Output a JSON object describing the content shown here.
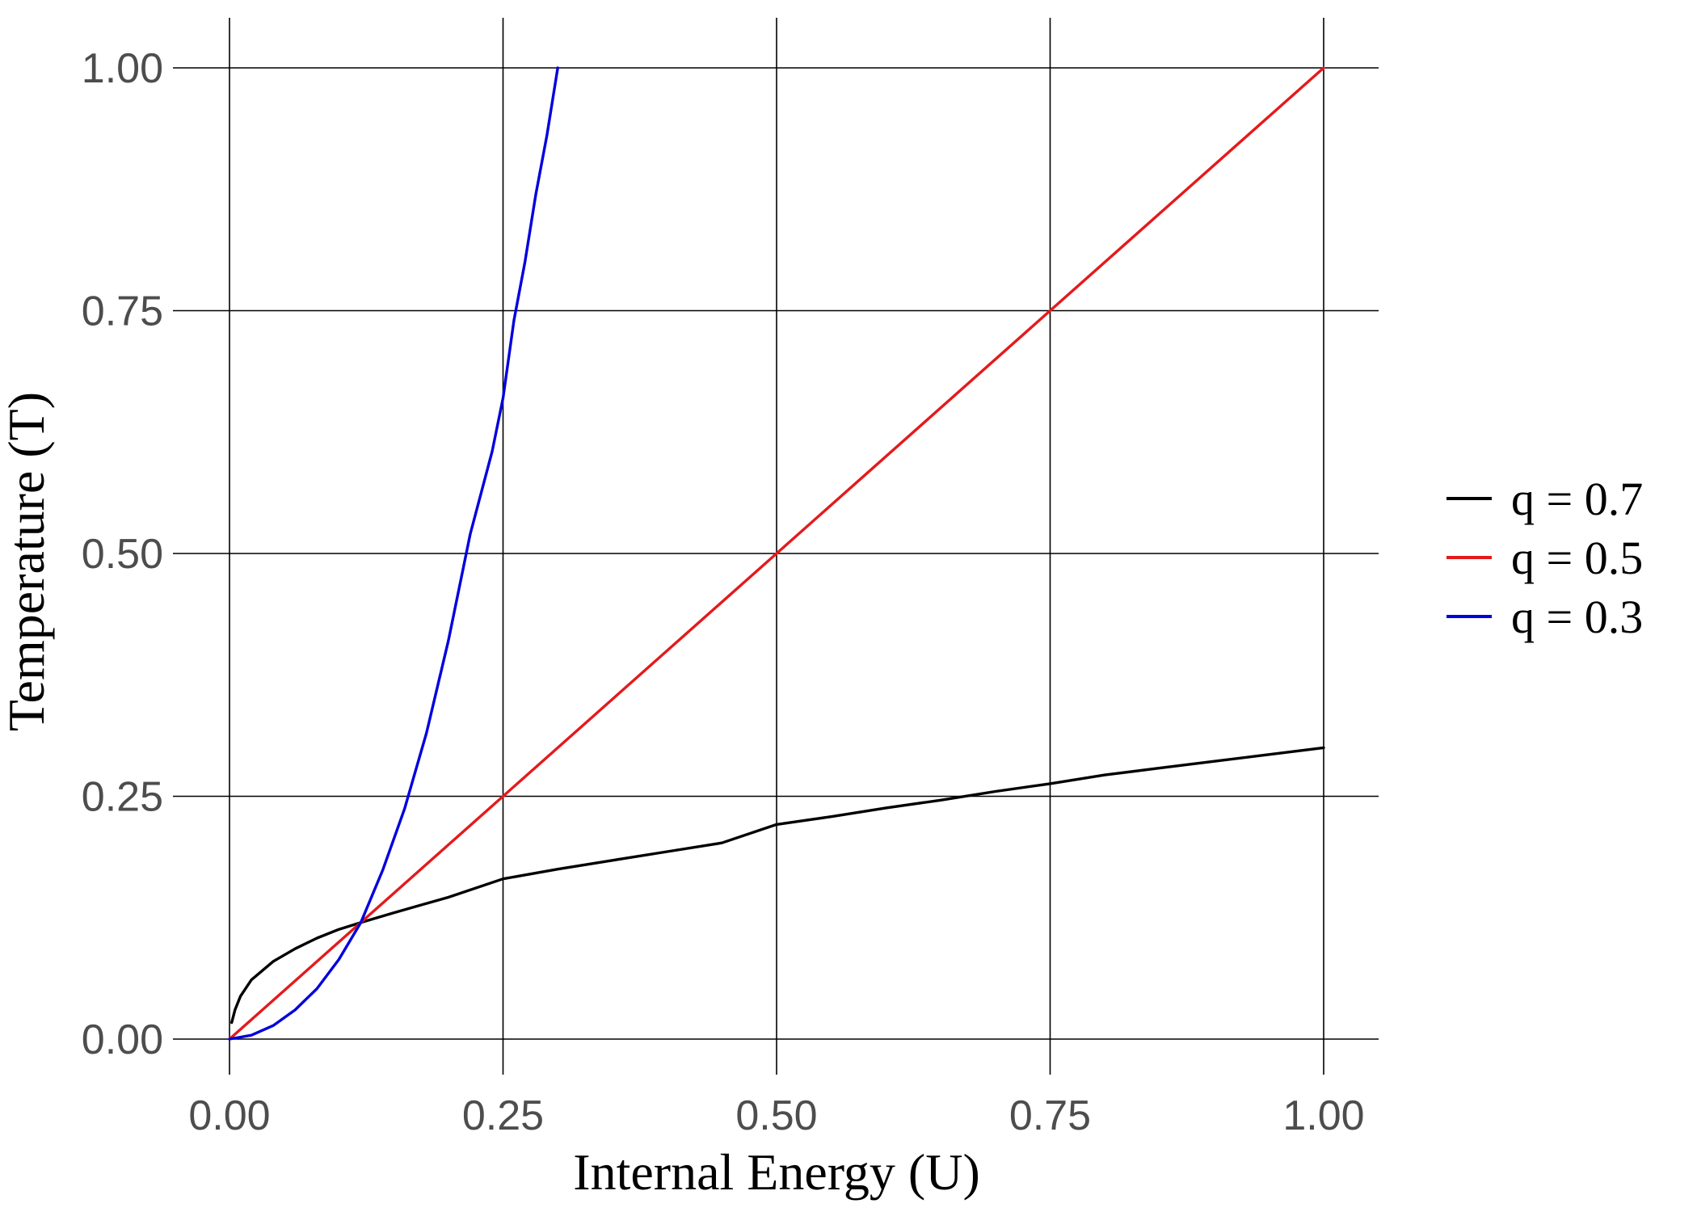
{
  "chart_data": {
    "type": "line",
    "title": "",
    "xlabel": "Internal Energy (U)",
    "ylabel": "Temperature (T)",
    "xlim": [
      0,
      1
    ],
    "ylim": [
      0,
      1
    ],
    "xticks": [
      0,
      0.25,
      0.5,
      0.75,
      1
    ],
    "yticks": [
      0,
      0.25,
      0.5,
      0.75,
      1
    ],
    "xtick_labels": [
      "0.00",
      "0.25",
      "0.50",
      "0.75",
      "1.00"
    ],
    "ytick_labels": [
      "0.00",
      "0.25",
      "0.50",
      "0.75",
      "1.00"
    ],
    "grid": true,
    "legend_position": "right",
    "series": [
      {
        "name": "q = 0.7",
        "color": "#000000",
        "x": [
          0.002,
          0.005,
          0.01,
          0.02,
          0.04,
          0.06,
          0.08,
          0.1,
          0.12,
          0.15,
          0.2,
          0.25,
          0.3,
          0.35,
          0.4,
          0.45,
          0.5,
          0.55,
          0.6,
          0.65,
          0.7,
          0.75,
          0.8,
          0.85,
          0.9,
          0.95,
          1.0
        ],
        "y": [
          0.017,
          0.03,
          0.044,
          0.061,
          0.08,
          0.093,
          0.104,
          0.113,
          0.12,
          0.13,
          0.146,
          0.165,
          0.175,
          0.184,
          0.193,
          0.202,
          0.221,
          0.229,
          0.238,
          0.246,
          0.255,
          0.263,
          0.272,
          0.279,
          0.286,
          0.293,
          0.3
        ]
      },
      {
        "name": "q = 0.5",
        "color": "#e41a1c",
        "x": [
          0,
          0.25,
          0.5,
          0.75,
          1.0
        ],
        "y": [
          0,
          0.25,
          0.5,
          0.75,
          1.0
        ]
      },
      {
        "name": "q = 0.3",
        "color": "#0000dd",
        "x": [
          0,
          0.02,
          0.04,
          0.06,
          0.08,
          0.1,
          0.12,
          0.14,
          0.16,
          0.18,
          0.2,
          0.22,
          0.24,
          0.25,
          0.26,
          0.27,
          0.28,
          0.29,
          0.3
        ],
        "y": [
          0,
          0.004,
          0.014,
          0.03,
          0.052,
          0.082,
          0.12,
          0.174,
          0.237,
          0.315,
          0.41,
          0.52,
          0.605,
          0.66,
          0.74,
          0.8,
          0.87,
          0.93,
          1.0
        ]
      }
    ]
  }
}
